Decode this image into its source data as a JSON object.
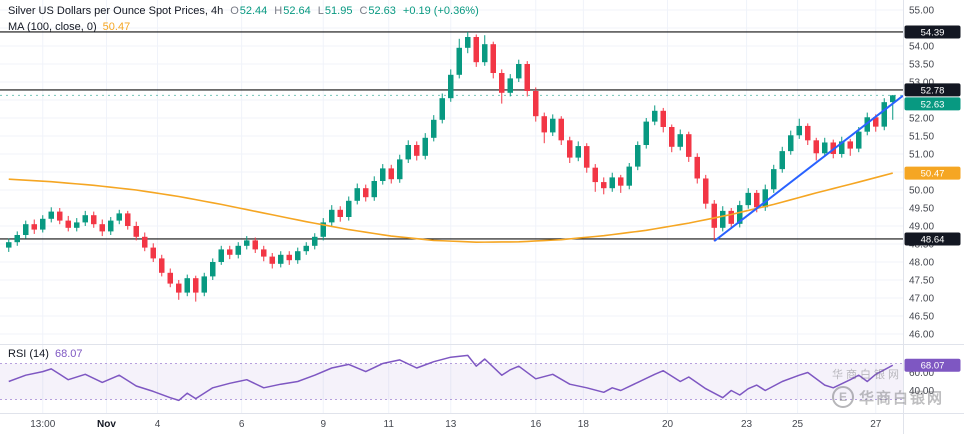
{
  "legend": {
    "title": "Silver US Dollars per Ounce Spot Prices, 4h",
    "ohlc": [
      {
        "k": "O",
        "v": "52.44"
      },
      {
        "k": "H",
        "v": "52.64"
      },
      {
        "k": "L",
        "v": "51.95"
      },
      {
        "k": "C",
        "v": "52.63"
      }
    ],
    "change": "+0.19 (+0.36%)",
    "ma_label": "MA (100, close, 0)",
    "ma_value": "50.47",
    "rsi_label": "RSI (14)",
    "rsi_value": "68.07"
  },
  "watermark": {
    "line1": "华商白银网",
    "line2": "华商白银网",
    "logo_letter": "E"
  },
  "colors": {
    "up": "#089981",
    "down": "#f23645",
    "ma": "#f5a623",
    "trend": "#2962ff",
    "rsi": "#7e57c2",
    "rsi_band": "rgba(126,87,194,0.08)",
    "rsi_guide": "rgba(126,87,194,0.55)",
    "grid": "#f0f3fa",
    "axis_text": "#44474f",
    "axis_text_bold": "#131722",
    "dark": "#131722",
    "separator": "#e0e3eb",
    "hline": "#111111"
  },
  "chart_data": {
    "type": "candlestick",
    "title": "Silver US Dollars per Ounce Spot Prices",
    "interval": "4h",
    "price_axis": {
      "min": 46.0,
      "max": 55.0,
      "step": 0.5
    },
    "price_ticks": [
      "55.00",
      "54.00",
      "53.50",
      "53.00",
      "52.00",
      "51.50",
      "51.00",
      "50.00",
      "49.50",
      "49.00",
      "48.50",
      "48.00",
      "47.50",
      "47.00",
      "46.50",
      "46.00"
    ],
    "time_ticks": [
      {
        "label": "13:00",
        "i": 4
      },
      {
        "label": "Nov",
        "i": 11.5,
        "bold": true
      },
      {
        "label": "4",
        "i": 17.5
      },
      {
        "label": "6",
        "i": 27.4
      },
      {
        "label": "9",
        "i": 37
      },
      {
        "label": "11",
        "i": 44.7
      },
      {
        "label": "13",
        "i": 52
      },
      {
        "label": "16",
        "i": 62
      },
      {
        "label": "18",
        "i": 67.6
      },
      {
        "label": "20",
        "i": 77.5
      },
      {
        "label": "23",
        "i": 86.8
      },
      {
        "label": "25",
        "i": 92.8
      },
      {
        "label": "27",
        "i": 102
      }
    ],
    "hlines": [
      54.39,
      52.78,
      48.64
    ],
    "last_price": 52.63,
    "badges": [
      {
        "price": 54.39,
        "text": "54.39",
        "bg": "dark"
      },
      {
        "price": 52.78,
        "text": "52.78",
        "bg": "dark"
      },
      {
        "price": 52.63,
        "text": "52.63",
        "bg": "up"
      },
      {
        "price": 50.47,
        "text": "50.47",
        "bg": "ma"
      },
      {
        "price": 48.64,
        "text": "48.64",
        "bg": "dark"
      }
    ],
    "trendline": {
      "i1": 83,
      "p1": 48.58,
      "i2": 105.5,
      "p2": 52.62
    },
    "ma_period": 100,
    "ma_points": [
      [
        0,
        50.3
      ],
      [
        5,
        50.23
      ],
      [
        10,
        50.13
      ],
      [
        15,
        50.0
      ],
      [
        20,
        49.82
      ],
      [
        25,
        49.6
      ],
      [
        30,
        49.36
      ],
      [
        35,
        49.12
      ],
      [
        40,
        48.9
      ],
      [
        45,
        48.72
      ],
      [
        50,
        48.6
      ],
      [
        55,
        48.55
      ],
      [
        60,
        48.56
      ],
      [
        65,
        48.62
      ],
      [
        70,
        48.73
      ],
      [
        75,
        48.88
      ],
      [
        80,
        49.08
      ],
      [
        85,
        49.32
      ],
      [
        90,
        49.6
      ],
      [
        95,
        49.92
      ],
      [
        100,
        50.22
      ],
      [
        104,
        50.47
      ]
    ],
    "candles": [
      [
        48.4,
        48.65,
        48.28,
        48.55
      ],
      [
        48.55,
        48.85,
        48.45,
        48.75
      ],
      [
        48.75,
        49.15,
        48.65,
        49.05
      ],
      [
        49.05,
        49.18,
        48.78,
        48.9
      ],
      [
        48.9,
        49.3,
        48.82,
        49.2
      ],
      [
        49.2,
        49.52,
        49.1,
        49.4
      ],
      [
        49.4,
        49.5,
        49.05,
        49.15
      ],
      [
        49.15,
        49.28,
        48.85,
        48.95
      ],
      [
        48.95,
        49.22,
        48.85,
        49.1
      ],
      [
        49.1,
        49.42,
        49.0,
        49.3
      ],
      [
        49.3,
        49.4,
        48.95,
        49.05
      ],
      [
        49.05,
        49.18,
        48.72,
        48.85
      ],
      [
        48.85,
        49.25,
        48.75,
        49.15
      ],
      [
        49.15,
        49.45,
        49.05,
        49.35
      ],
      [
        49.35,
        49.42,
        48.9,
        49.0
      ],
      [
        49.0,
        49.12,
        48.6,
        48.7
      ],
      [
        48.7,
        48.82,
        48.3,
        48.4
      ],
      [
        48.4,
        48.52,
        48.0,
        48.1
      ],
      [
        48.1,
        48.2,
        47.6,
        47.7
      ],
      [
        47.7,
        47.82,
        47.3,
        47.4
      ],
      [
        47.4,
        47.5,
        46.95,
        47.15
      ],
      [
        47.15,
        47.65,
        47.05,
        47.55
      ],
      [
        47.55,
        47.62,
        46.9,
        47.15
      ],
      [
        47.15,
        47.7,
        47.05,
        47.6
      ],
      [
        47.6,
        48.1,
        47.5,
        48.0
      ],
      [
        48.0,
        48.45,
        47.92,
        48.35
      ],
      [
        48.35,
        48.45,
        48.08,
        48.2
      ],
      [
        48.2,
        48.55,
        48.1,
        48.45
      ],
      [
        48.45,
        48.72,
        48.35,
        48.6
      ],
      [
        48.6,
        48.68,
        48.25,
        48.35
      ],
      [
        48.35,
        48.45,
        48.02,
        48.15
      ],
      [
        48.15,
        48.25,
        47.82,
        47.95
      ],
      [
        47.95,
        48.3,
        47.85,
        48.2
      ],
      [
        48.2,
        48.3,
        47.92,
        48.05
      ],
      [
        48.05,
        48.4,
        47.95,
        48.3
      ],
      [
        48.3,
        48.55,
        48.2,
        48.45
      ],
      [
        48.45,
        48.8,
        48.35,
        48.7
      ],
      [
        48.7,
        49.22,
        48.6,
        49.1
      ],
      [
        49.1,
        49.58,
        49.0,
        49.45
      ],
      [
        49.45,
        49.55,
        49.12,
        49.25
      ],
      [
        49.25,
        49.82,
        49.15,
        49.7
      ],
      [
        49.7,
        50.18,
        49.6,
        50.05
      ],
      [
        50.05,
        50.15,
        49.68,
        49.8
      ],
      [
        49.8,
        50.38,
        49.7,
        50.25
      ],
      [
        50.25,
        50.72,
        50.15,
        50.6
      ],
      [
        50.6,
        50.7,
        50.18,
        50.3
      ],
      [
        50.3,
        50.98,
        50.2,
        50.85
      ],
      [
        50.85,
        51.38,
        50.75,
        51.25
      ],
      [
        51.25,
        51.35,
        50.82,
        50.95
      ],
      [
        50.95,
        51.58,
        50.85,
        51.45
      ],
      [
        51.45,
        52.08,
        51.35,
        51.95
      ],
      [
        51.95,
        52.68,
        51.85,
        52.55
      ],
      [
        52.55,
        53.35,
        52.45,
        53.2
      ],
      [
        53.2,
        54.2,
        53.1,
        53.95
      ],
      [
        53.95,
        54.39,
        53.8,
        54.25
      ],
      [
        54.25,
        54.32,
        53.42,
        53.55
      ],
      [
        53.55,
        54.3,
        53.45,
        54.05
      ],
      [
        54.05,
        54.12,
        53.1,
        53.25
      ],
      [
        53.25,
        53.35,
        52.4,
        52.7
      ],
      [
        52.7,
        53.22,
        52.6,
        53.1
      ],
      [
        53.1,
        53.62,
        53.0,
        53.5
      ],
      [
        53.5,
        53.58,
        52.6,
        52.75
      ],
      [
        52.75,
        52.85,
        51.9,
        52.05
      ],
      [
        52.05,
        52.15,
        51.3,
        51.6
      ],
      [
        51.6,
        52.1,
        51.5,
        51.98
      ],
      [
        51.98,
        52.05,
        51.25,
        51.38
      ],
      [
        51.38,
        51.48,
        50.75,
        50.9
      ],
      [
        50.9,
        51.35,
        50.8,
        51.22
      ],
      [
        51.22,
        51.3,
        50.48,
        50.62
      ],
      [
        50.62,
        50.72,
        49.95,
        50.22
      ],
      [
        50.22,
        50.35,
        49.88,
        50.05
      ],
      [
        50.05,
        50.48,
        49.95,
        50.35
      ],
      [
        50.35,
        50.42,
        49.92,
        50.12
      ],
      [
        50.12,
        50.75,
        50.02,
        50.65
      ],
      [
        50.65,
        51.35,
        50.55,
        51.25
      ],
      [
        51.25,
        52.0,
        51.15,
        51.9
      ],
      [
        51.9,
        52.35,
        51.8,
        52.2
      ],
      [
        52.2,
        52.28,
        51.6,
        51.75
      ],
      [
        51.75,
        51.82,
        51.05,
        51.2
      ],
      [
        51.2,
        51.68,
        51.1,
        51.55
      ],
      [
        51.55,
        51.62,
        50.78,
        50.92
      ],
      [
        50.92,
        51.02,
        50.18,
        50.32
      ],
      [
        50.32,
        50.42,
        49.48,
        49.62
      ],
      [
        49.62,
        49.72,
        48.58,
        48.95
      ],
      [
        48.95,
        49.55,
        48.85,
        49.42
      ],
      [
        49.42,
        49.5,
        48.92,
        49.06
      ],
      [
        49.06,
        49.7,
        48.96,
        49.58
      ],
      [
        49.58,
        50.05,
        49.48,
        49.92
      ],
      [
        49.92,
        50.0,
        49.38,
        49.52
      ],
      [
        49.52,
        50.15,
        49.42,
        50.02
      ],
      [
        50.02,
        50.7,
        49.92,
        50.58
      ],
      [
        50.58,
        51.2,
        50.48,
        51.08
      ],
      [
        51.08,
        51.65,
        50.98,
        51.52
      ],
      [
        51.52,
        51.98,
        51.42,
        51.78
      ],
      [
        51.78,
        51.85,
        51.25,
        51.38
      ],
      [
        51.38,
        51.45,
        50.82,
        51.02
      ],
      [
        51.02,
        51.45,
        50.92,
        51.32
      ],
      [
        51.32,
        51.4,
        50.88,
        51.0
      ],
      [
        51.0,
        51.48,
        50.9,
        51.35
      ],
      [
        51.35,
        51.42,
        50.95,
        51.15
      ],
      [
        51.15,
        51.75,
        51.05,
        51.62
      ],
      [
        51.62,
        52.15,
        51.52,
        52.02
      ],
      [
        52.02,
        52.1,
        51.62,
        51.76
      ],
      [
        51.76,
        52.55,
        51.66,
        52.44
      ],
      [
        52.44,
        52.64,
        51.95,
        52.63
      ]
    ],
    "rsi": {
      "period": 14,
      "upper": 70,
      "lower": 30,
      "ticks": [
        60,
        40
      ],
      "current": 68.07,
      "badge_text": "68.07",
      "points": [
        [
          0,
          50
        ],
        [
          2,
          57
        ],
        [
          4,
          61
        ],
        [
          5,
          64
        ],
        [
          6,
          58
        ],
        [
          7,
          52
        ],
        [
          9,
          58
        ],
        [
          11,
          49
        ],
        [
          13,
          57
        ],
        [
          15,
          45
        ],
        [
          17,
          39
        ],
        [
          19,
          32
        ],
        [
          20,
          29
        ],
        [
          21,
          37
        ],
        [
          22,
          31
        ],
        [
          24,
          43
        ],
        [
          26,
          48
        ],
        [
          28,
          52
        ],
        [
          30,
          43
        ],
        [
          32,
          47
        ],
        [
          34,
          50
        ],
        [
          36,
          57
        ],
        [
          38,
          65
        ],
        [
          40,
          69
        ],
        [
          42,
          61
        ],
        [
          44,
          70
        ],
        [
          46,
          74
        ],
        [
          48,
          65
        ],
        [
          50,
          72
        ],
        [
          52,
          77
        ],
        [
          54,
          79
        ],
        [
          55,
          67
        ],
        [
          56,
          75
        ],
        [
          58,
          57
        ],
        [
          59,
          63
        ],
        [
          60,
          67
        ],
        [
          62,
          53
        ],
        [
          64,
          58
        ],
        [
          66,
          47
        ],
        [
          68,
          43
        ],
        [
          70,
          38
        ],
        [
          71,
          43
        ],
        [
          72,
          40
        ],
        [
          74,
          49
        ],
        [
          76,
          58
        ],
        [
          77,
          62
        ],
        [
          79,
          50
        ],
        [
          80,
          55
        ],
        [
          82,
          42
        ],
        [
          84,
          32
        ],
        [
          85,
          40
        ],
        [
          86,
          35
        ],
        [
          87,
          42
        ],
        [
          88,
          46
        ],
        [
          89,
          40
        ],
        [
          91,
          50
        ],
        [
          93,
          57
        ],
        [
          94,
          60
        ],
        [
          96,
          46
        ],
        [
          97,
          43
        ],
        [
          99,
          52
        ],
        [
          100,
          57
        ],
        [
          101,
          50
        ],
        [
          102,
          58
        ],
        [
          103,
          63
        ],
        [
          104,
          68.07
        ]
      ]
    }
  }
}
